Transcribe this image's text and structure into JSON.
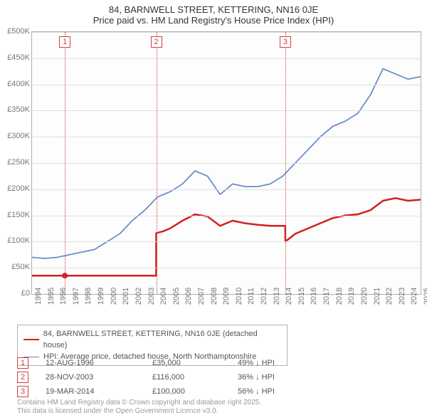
{
  "title": "84, BARNWELL STREET, KETTERING, NN16 0JE",
  "subtitle": "Price paid vs. HM Land Registry's House Price Index (HPI)",
  "chart": {
    "type": "line",
    "background_color": "#fdfdfd",
    "grid_color": "#e0e0e0",
    "border_color": "#b0b0b0",
    "ylim": [
      0,
      500000
    ],
    "ytick_step": 50000,
    "yticks": [
      "£0",
      "£50K",
      "£100K",
      "£150K",
      "£200K",
      "£250K",
      "£300K",
      "£350K",
      "£400K",
      "£450K",
      "£500K"
    ],
    "xlim": [
      1994,
      2025
    ],
    "xticks": [
      "1994",
      "1995",
      "1996",
      "1997",
      "1998",
      "1999",
      "2000",
      "2001",
      "2002",
      "2003",
      "2004",
      "2005",
      "2006",
      "2007",
      "2008",
      "2009",
      "2010",
      "2011",
      "2012",
      "2013",
      "2014",
      "2015",
      "2016",
      "2017",
      "2018",
      "2019",
      "2020",
      "2021",
      "2022",
      "2023",
      "2024",
      "2025"
    ],
    "series": [
      {
        "name": "property",
        "color": "#d12020",
        "width": 2.5,
        "points": [
          [
            1994,
            35000
          ],
          [
            1996.6,
            35000
          ],
          [
            1996.62,
            35000
          ],
          [
            2003.9,
            35000
          ],
          [
            2003.91,
            116000
          ],
          [
            2004.5,
            120000
          ],
          [
            2005,
            125000
          ],
          [
            2006,
            140000
          ],
          [
            2007,
            152000
          ],
          [
            2008,
            148000
          ],
          [
            2009,
            130000
          ],
          [
            2010,
            140000
          ],
          [
            2011,
            135000
          ],
          [
            2012,
            132000
          ],
          [
            2013,
            130000
          ],
          [
            2014.2,
            130000
          ],
          [
            2014.21,
            100000
          ],
          [
            2015,
            115000
          ],
          [
            2016,
            125000
          ],
          [
            2017,
            135000
          ],
          [
            2018,
            145000
          ],
          [
            2019,
            150000
          ],
          [
            2020,
            152000
          ],
          [
            2021,
            160000
          ],
          [
            2022,
            178000
          ],
          [
            2023,
            183000
          ],
          [
            2024,
            178000
          ],
          [
            2025,
            180000
          ]
        ]
      },
      {
        "name": "hpi",
        "color": "#6a8fc7",
        "width": 1.8,
        "points": [
          [
            1994,
            70000
          ],
          [
            1995,
            68000
          ],
          [
            1996,
            70000
          ],
          [
            1997,
            75000
          ],
          [
            1998,
            80000
          ],
          [
            1999,
            85000
          ],
          [
            2000,
            100000
          ],
          [
            2001,
            115000
          ],
          [
            2002,
            140000
          ],
          [
            2003,
            160000
          ],
          [
            2004,
            185000
          ],
          [
            2005,
            195000
          ],
          [
            2006,
            210000
          ],
          [
            2007,
            235000
          ],
          [
            2008,
            225000
          ],
          [
            2009,
            190000
          ],
          [
            2010,
            210000
          ],
          [
            2011,
            205000
          ],
          [
            2012,
            205000
          ],
          [
            2013,
            210000
          ],
          [
            2014,
            225000
          ],
          [
            2015,
            250000
          ],
          [
            2016,
            275000
          ],
          [
            2017,
            300000
          ],
          [
            2018,
            320000
          ],
          [
            2019,
            330000
          ],
          [
            2020,
            345000
          ],
          [
            2021,
            380000
          ],
          [
            2022,
            430000
          ],
          [
            2023,
            420000
          ],
          [
            2024,
            410000
          ],
          [
            2025,
            415000
          ]
        ]
      }
    ],
    "event_lines": [
      {
        "x": 1996.62,
        "label": "1"
      },
      {
        "x": 2003.91,
        "label": "2"
      },
      {
        "x": 2014.21,
        "label": "3"
      }
    ],
    "event_line_color": "#d04040",
    "sale_marker_color": "#d12020"
  },
  "legend": {
    "items": [
      {
        "color": "#d12020",
        "width": 2.5,
        "label": "84, BARNWELL STREET, KETTERING, NN16 0JE (detached house)"
      },
      {
        "color": "#6a8fc7",
        "width": 1.8,
        "label": "HPI: Average price, detached house, North Northamptonshire"
      }
    ]
  },
  "events": [
    {
      "num": "1",
      "date": "12-AUG-1996",
      "price": "£35,000",
      "delta": "49% ↓ HPI"
    },
    {
      "num": "2",
      "date": "28-NOV-2003",
      "price": "£116,000",
      "delta": "36% ↓ HPI"
    },
    {
      "num": "3",
      "date": "19-MAR-2014",
      "price": "£100,000",
      "delta": "56% ↓ HPI"
    }
  ],
  "footer": {
    "line1": "Contains HM Land Registry data © Crown copyright and database right 2025.",
    "line2": "This data is licensed under the Open Government Licence v3.0."
  }
}
